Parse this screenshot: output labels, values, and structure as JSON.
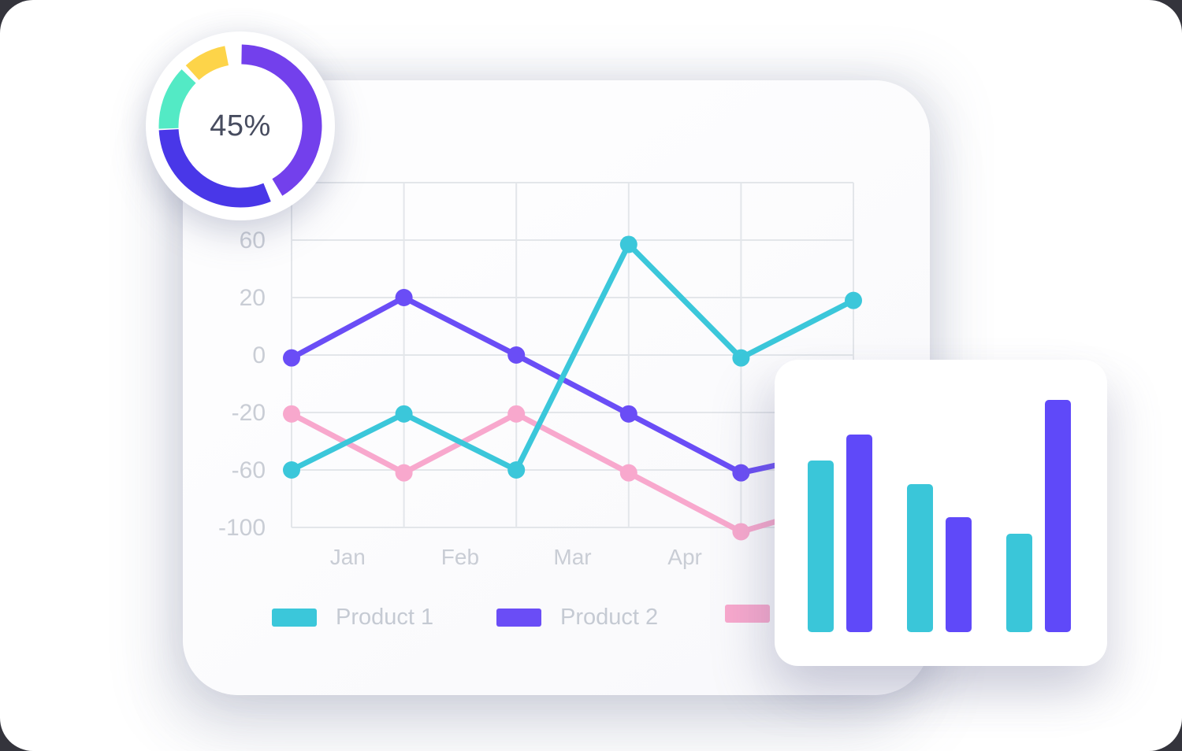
{
  "chart_data": [
    {
      "type": "donut",
      "label": "45%",
      "unit": "percent",
      "segments": [
        {
          "name": "violet",
          "color": "#7340EC",
          "start_deg": 1,
          "end_deg": 149
        },
        {
          "name": "indigo",
          "color": "#4937E8",
          "start_deg": 158,
          "end_deg": 267
        },
        {
          "name": "teal",
          "color": "#53EAC5",
          "start_deg": 268,
          "end_deg": 314
        },
        {
          "name": "yellow",
          "color": "#FDD449",
          "start_deg": 318,
          "end_deg": 349
        }
      ]
    },
    {
      "type": "line",
      "title": "",
      "x_tick_labels": [
        "Jan",
        "Feb",
        "Mar",
        "Apr"
      ],
      "y_tick_labels": [
        "60",
        "20",
        "0",
        "-20",
        "-60",
        "-100"
      ],
      "y_tick_values": [
        60,
        20,
        0,
        -20,
        -60,
        -100
      ],
      "x_gridline_count": 6,
      "grid": true,
      "legend_position": "bottom",
      "series": [
        {
          "id": "product-3",
          "legend_label": "",
          "color": "#F8A8CD",
          "values": [
            -21,
            -62,
            -21,
            -62,
            -103,
            -80
          ]
        },
        {
          "id": "product-2",
          "legend_label": "Product 2",
          "color": "#6A4DF6",
          "values": [
            -1,
            20,
            0,
            -21,
            -62,
            -45
          ]
        },
        {
          "id": "product-1",
          "legend_label": "Product 1",
          "color": "#3BC7DA",
          "values": [
            -60,
            -21,
            -60,
            57,
            -1,
            19
          ]
        }
      ],
      "legend_order": [
        "product-1",
        "product-2",
        "product-3"
      ]
    },
    {
      "type": "bar",
      "title": "",
      "values": [
        218,
        251,
        188,
        146,
        125,
        295
      ],
      "colors": [
        "#3AC6D9",
        "#5F49F9",
        "#3AC6D9",
        "#5F49F9",
        "#3AC6D9",
        "#5F49F9"
      ],
      "grid": false,
      "axis_labels_visible": false
    }
  ],
  "styles": {
    "gridline_color": "#E3E6EA",
    "axis_label_color": "#C9CDD5",
    "donut_label_color": "#474C5F"
  }
}
